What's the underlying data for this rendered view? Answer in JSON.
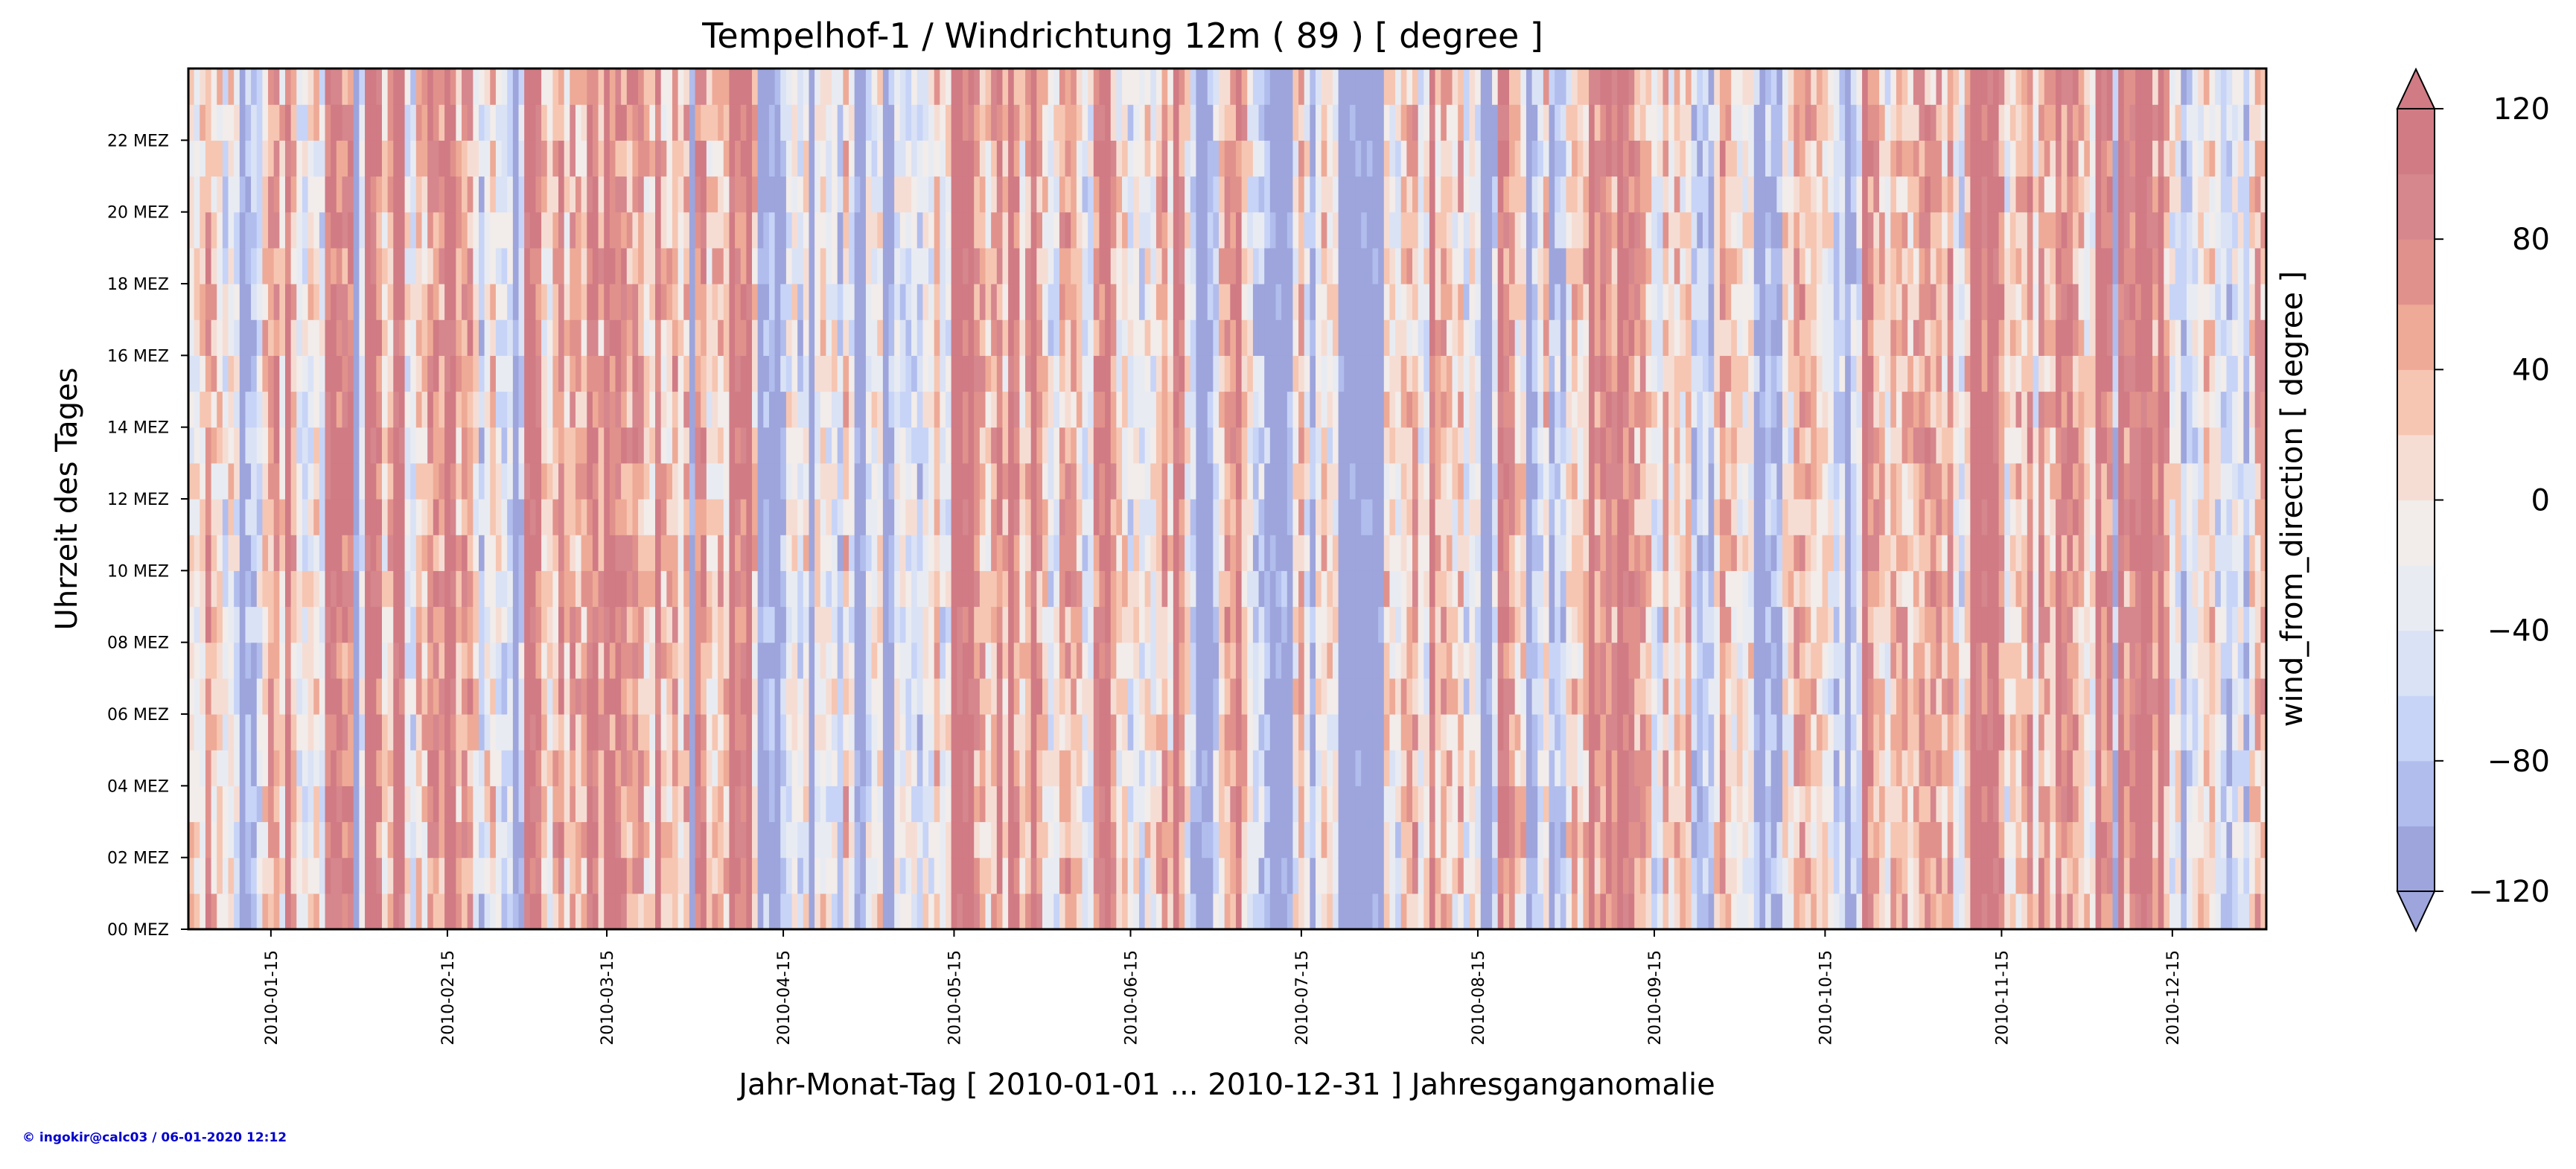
{
  "chart_data": {
    "type": "heatmap",
    "title": "Tempelhof-1 / Windrichtung 12m ( 89 ) [ degree ]",
    "xlabel": "Jahr-Monat-Tag [ 2010-01-01 ... 2010-12-31 ] Jahresganganomalie",
    "ylabel": "Uhrzeit des Tages",
    "x_range": [
      "2010-01-01",
      "2010-12-31"
    ],
    "x_ticks": [
      "2010-01-15",
      "2010-02-15",
      "2010-03-15",
      "2010-04-15",
      "2010-05-15",
      "2010-06-15",
      "2010-07-15",
      "2010-08-15",
      "2010-09-15",
      "2010-10-15",
      "2010-11-15",
      "2010-12-15"
    ],
    "y_range": [
      0,
      24
    ],
    "y_ticks": [
      "00 MEZ",
      "02 MEZ",
      "04 MEZ",
      "06 MEZ",
      "08 MEZ",
      "10 MEZ",
      "12 MEZ",
      "14 MEZ",
      "16 MEZ",
      "18 MEZ",
      "20 MEZ",
      "22 MEZ"
    ],
    "colorbar": {
      "label": "wind_from_direction [ degree ]",
      "range": [
        -120,
        120
      ],
      "levels": [
        -120,
        -100,
        -80,
        -60,
        -40,
        -20,
        0,
        20,
        40,
        60,
        80,
        100,
        120
      ],
      "tick_labels": [
        "−120",
        "−80",
        "−40",
        "0",
        "40",
        "80",
        "120"
      ],
      "colors": [
        "#9da5dc",
        "#b1bded",
        "#c7d4f7",
        "#dae2f5",
        "#e8ecf2",
        "#f2ecea",
        "#f6ddd4",
        "#f6c6b2",
        "#eeaa96",
        "#e1918b",
        "#d6868d",
        "#d17b85"
      ],
      "extend": "both"
    },
    "grid": false
  },
  "credit": "© ingokir@calc03 / 06-01-2020 12:12"
}
